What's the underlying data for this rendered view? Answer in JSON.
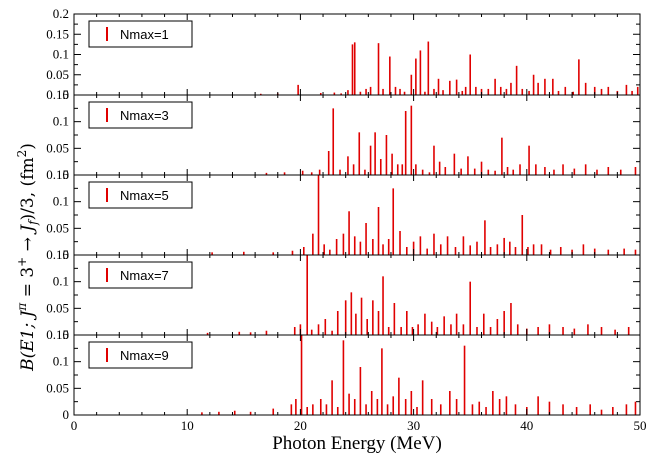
{
  "chart_data": {
    "type": "bar",
    "panel_layout": "stacked-vertical",
    "shared_x_axis": true,
    "xlabel": "Photon Energy (MeV)",
    "ylabel": "B(E1; J^π = 3^+ → J_f)/3,  (fm^2)",
    "ylabel_parts": {
      "prefix": "B(E1; J",
      "pi_sup": "π",
      "eq3": " = 3",
      "plus_sup": "+",
      "arrow": " → J",
      "f_sub": "f",
      "suffix": ")/3,  (fm",
      "sq_sup": "2",
      "close": ")"
    },
    "xlim": [
      0,
      50
    ],
    "x_ticks": [
      0,
      10,
      20,
      30,
      40,
      50
    ],
    "x_tick_labels": [
      "0",
      "10",
      "20",
      "30",
      "40",
      "50"
    ],
    "bar_color": "#e00000",
    "grid": false,
    "legend_placement": "top-left",
    "panels": [
      {
        "legend": "Nmax=1",
        "ylim": [
          0,
          0.2
        ],
        "y_ticks": [
          0,
          0.05,
          0.1,
          0.15,
          0.2
        ],
        "y_tick_labels": [
          "0",
          "0.05",
          "0.1",
          "0.15",
          "0.2"
        ],
        "bars": [
          [
            16.5,
            0.003
          ],
          [
            18.0,
            0.004
          ],
          [
            19.8,
            0.025
          ],
          [
            21.8,
            0.005
          ],
          [
            23.0,
            0.006
          ],
          [
            23.6,
            0.004
          ],
          [
            24.2,
            0.012
          ],
          [
            24.6,
            0.125
          ],
          [
            24.8,
            0.13
          ],
          [
            25.3,
            0.008
          ],
          [
            25.8,
            0.015
          ],
          [
            26.2,
            0.02
          ],
          [
            26.9,
            0.128
          ],
          [
            27.3,
            0.015
          ],
          [
            27.9,
            0.095
          ],
          [
            28.4,
            0.02
          ],
          [
            28.8,
            0.015
          ],
          [
            29.2,
            0.008
          ],
          [
            29.8,
            0.05
          ],
          [
            30.2,
            0.09
          ],
          [
            30.6,
            0.11
          ],
          [
            31.0,
            0.008
          ],
          [
            31.3,
            0.132
          ],
          [
            31.8,
            0.015
          ],
          [
            32.2,
            0.04
          ],
          [
            32.6,
            0.012
          ],
          [
            33.2,
            0.035
          ],
          [
            33.8,
            0.038
          ],
          [
            34.3,
            0.01
          ],
          [
            34.6,
            0.02
          ],
          [
            35.0,
            0.1
          ],
          [
            35.5,
            0.02
          ],
          [
            36.0,
            0.015
          ],
          [
            36.6,
            0.015
          ],
          [
            37.2,
            0.04
          ],
          [
            37.7,
            0.02
          ],
          [
            38.2,
            0.015
          ],
          [
            38.6,
            0.03
          ],
          [
            39.1,
            0.072
          ],
          [
            39.6,
            0.015
          ],
          [
            40.2,
            0.01
          ],
          [
            40.6,
            0.05
          ],
          [
            41.0,
            0.03
          ],
          [
            41.6,
            0.04
          ],
          [
            42.3,
            0.04
          ],
          [
            42.8,
            0.01
          ],
          [
            43.4,
            0.02
          ],
          [
            44.1,
            0.008
          ],
          [
            44.6,
            0.088
          ],
          [
            45.2,
            0.03
          ],
          [
            46.0,
            0.02
          ],
          [
            46.6,
            0.015
          ],
          [
            47.2,
            0.02
          ],
          [
            48.0,
            0.01
          ],
          [
            48.8,
            0.025
          ],
          [
            49.3,
            0.01
          ],
          [
            49.8,
            0.02
          ]
        ]
      },
      {
        "legend": "Nmax=3",
        "ylim": [
          0,
          0.15
        ],
        "y_ticks": [
          0,
          0.05,
          0.1,
          0.15
        ],
        "y_tick_labels": [
          "0",
          "0.05",
          "0.1",
          "0.15"
        ],
        "bars": [
          [
            17.0,
            0.004
          ],
          [
            18.6,
            0.005
          ],
          [
            20.2,
            0.008
          ],
          [
            21.0,
            0.005
          ],
          [
            21.7,
            0.01
          ],
          [
            22.5,
            0.045
          ],
          [
            22.9,
            0.125
          ],
          [
            23.5,
            0.01
          ],
          [
            24.2,
            0.035
          ],
          [
            24.7,
            0.02
          ],
          [
            25.2,
            0.08
          ],
          [
            25.7,
            0.01
          ],
          [
            26.2,
            0.055
          ],
          [
            26.6,
            0.08
          ],
          [
            27.1,
            0.03
          ],
          [
            27.6,
            0.075
          ],
          [
            28.1,
            0.04
          ],
          [
            28.6,
            0.02
          ],
          [
            29.0,
            0.02
          ],
          [
            29.3,
            0.12
          ],
          [
            29.8,
            0.13
          ],
          [
            30.2,
            0.02
          ],
          [
            30.8,
            0.01
          ],
          [
            31.4,
            0.005
          ],
          [
            31.8,
            0.055
          ],
          [
            32.3,
            0.025
          ],
          [
            32.8,
            0.015
          ],
          [
            33.6,
            0.04
          ],
          [
            34.2,
            0.012
          ],
          [
            34.8,
            0.035
          ],
          [
            35.4,
            0.012
          ],
          [
            36.0,
            0.025
          ],
          [
            36.6,
            0.01
          ],
          [
            37.2,
            0.008
          ],
          [
            37.8,
            0.07
          ],
          [
            38.3,
            0.015
          ],
          [
            38.8,
            0.01
          ],
          [
            39.4,
            0.02
          ],
          [
            40.2,
            0.055
          ],
          [
            40.8,
            0.02
          ],
          [
            41.6,
            0.015
          ],
          [
            42.4,
            0.01
          ],
          [
            43.2,
            0.02
          ],
          [
            44.2,
            0.012
          ],
          [
            45.2,
            0.02
          ],
          [
            46.2,
            0.01
          ],
          [
            47.2,
            0.015
          ],
          [
            48.3,
            0.01
          ],
          [
            49.6,
            0.015
          ]
        ]
      },
      {
        "legend": "Nmax=5",
        "ylim": [
          0,
          0.15
        ],
        "y_ticks": [
          0,
          0.05,
          0.1,
          0.15
        ],
        "y_tick_labels": [
          "0",
          "0.05",
          "0.1",
          "0.15"
        ],
        "bars": [
          [
            12.2,
            0.005
          ],
          [
            15.0,
            0.006
          ],
          [
            17.6,
            0.005
          ],
          [
            19.3,
            0.008
          ],
          [
            20.3,
            0.015
          ],
          [
            21.1,
            0.04
          ],
          [
            21.6,
            0.16
          ],
          [
            22.1,
            0.02
          ],
          [
            22.6,
            0.01
          ],
          [
            23.2,
            0.03
          ],
          [
            23.8,
            0.04
          ],
          [
            24.3,
            0.082
          ],
          [
            24.8,
            0.035
          ],
          [
            25.3,
            0.025
          ],
          [
            25.8,
            0.06
          ],
          [
            26.4,
            0.03
          ],
          [
            26.9,
            0.09
          ],
          [
            27.3,
            0.02
          ],
          [
            27.8,
            0.03
          ],
          [
            28.2,
            0.125
          ],
          [
            28.8,
            0.045
          ],
          [
            29.4,
            0.015
          ],
          [
            30.0,
            0.025
          ],
          [
            30.6,
            0.035
          ],
          [
            31.2,
            0.012
          ],
          [
            31.8,
            0.04
          ],
          [
            32.4,
            0.02
          ],
          [
            33.0,
            0.035
          ],
          [
            33.7,
            0.015
          ],
          [
            34.4,
            0.035
          ],
          [
            35.0,
            0.018
          ],
          [
            35.6,
            0.025
          ],
          [
            36.3,
            0.065
          ],
          [
            36.8,
            0.015
          ],
          [
            37.4,
            0.02
          ],
          [
            38.0,
            0.032
          ],
          [
            38.5,
            0.025
          ],
          [
            39.0,
            0.015
          ],
          [
            39.6,
            0.075
          ],
          [
            40.1,
            0.015
          ],
          [
            40.6,
            0.02
          ],
          [
            41.3,
            0.02
          ],
          [
            42.1,
            0.01
          ],
          [
            43.0,
            0.015
          ],
          [
            44.0,
            0.01
          ],
          [
            45.0,
            0.02
          ],
          [
            46.0,
            0.012
          ],
          [
            47.2,
            0.01
          ],
          [
            48.6,
            0.012
          ],
          [
            49.6,
            0.01
          ]
        ]
      },
      {
        "legend": "Nmax=7",
        "ylim": [
          0,
          0.15
        ],
        "y_ticks": [
          0,
          0.05,
          0.1,
          0.15
        ],
        "y_tick_labels": [
          "0",
          "0.05",
          "0.1",
          "0.15"
        ],
        "bars": [
          [
            11.8,
            0.004
          ],
          [
            14.6,
            0.006
          ],
          [
            15.6,
            0.005
          ],
          [
            17.0,
            0.008
          ],
          [
            19.5,
            0.015
          ],
          [
            20.0,
            0.02
          ],
          [
            20.6,
            0.18
          ],
          [
            21.0,
            0.01
          ],
          [
            21.6,
            0.02
          ],
          [
            22.2,
            0.03
          ],
          [
            22.8,
            0.008
          ],
          [
            23.3,
            0.045
          ],
          [
            24.0,
            0.065
          ],
          [
            24.5,
            0.08
          ],
          [
            24.9,
            0.04
          ],
          [
            25.4,
            0.07
          ],
          [
            25.9,
            0.03
          ],
          [
            26.4,
            0.065
          ],
          [
            26.9,
            0.045
          ],
          [
            27.3,
            0.11
          ],
          [
            27.8,
            0.015
          ],
          [
            28.3,
            0.06
          ],
          [
            28.9,
            0.015
          ],
          [
            29.4,
            0.045
          ],
          [
            29.9,
            0.015
          ],
          [
            30.4,
            0.02
          ],
          [
            31.0,
            0.04
          ],
          [
            31.6,
            0.025
          ],
          [
            32.1,
            0.015
          ],
          [
            32.7,
            0.035
          ],
          [
            33.3,
            0.02
          ],
          [
            33.8,
            0.04
          ],
          [
            34.4,
            0.02
          ],
          [
            35.0,
            0.1
          ],
          [
            35.6,
            0.015
          ],
          [
            36.2,
            0.04
          ],
          [
            36.8,
            0.015
          ],
          [
            37.4,
            0.03
          ],
          [
            38.0,
            0.045
          ],
          [
            38.6,
            0.06
          ],
          [
            39.2,
            0.02
          ],
          [
            40.0,
            0.012
          ],
          [
            41.0,
            0.015
          ],
          [
            42.0,
            0.02
          ],
          [
            43.2,
            0.015
          ],
          [
            44.2,
            0.012
          ],
          [
            45.4,
            0.02
          ],
          [
            46.6,
            0.015
          ],
          [
            47.8,
            0.01
          ],
          [
            49.0,
            0.015
          ]
        ]
      },
      {
        "legend": "Nmax=9",
        "ylim": [
          0,
          0.15
        ],
        "y_ticks": [
          0,
          0.05,
          0.1,
          0.15
        ],
        "y_tick_labels": [
          "0",
          "0.05",
          "0.1",
          "0.15"
        ],
        "bars": [
          [
            11.3,
            0.005
          ],
          [
            12.8,
            0.006
          ],
          [
            14.2,
            0.008
          ],
          [
            15.6,
            0.006
          ],
          [
            17.6,
            0.012
          ],
          [
            19.2,
            0.02
          ],
          [
            19.6,
            0.03
          ],
          [
            20.1,
            0.18
          ],
          [
            20.6,
            0.015
          ],
          [
            21.1,
            0.02
          ],
          [
            21.8,
            0.03
          ],
          [
            22.3,
            0.02
          ],
          [
            22.8,
            0.065
          ],
          [
            23.3,
            0.015
          ],
          [
            23.8,
            0.14
          ],
          [
            24.3,
            0.04
          ],
          [
            24.8,
            0.03
          ],
          [
            25.3,
            0.09
          ],
          [
            25.8,
            0.02
          ],
          [
            26.3,
            0.045
          ],
          [
            26.8,
            0.03
          ],
          [
            27.2,
            0.125
          ],
          [
            27.7,
            0.02
          ],
          [
            28.2,
            0.035
          ],
          [
            28.7,
            0.07
          ],
          [
            29.3,
            0.03
          ],
          [
            29.8,
            0.045
          ],
          [
            30.3,
            0.015
          ],
          [
            30.8,
            0.065
          ],
          [
            31.6,
            0.03
          ],
          [
            32.4,
            0.02
          ],
          [
            33.2,
            0.045
          ],
          [
            33.8,
            0.03
          ],
          [
            34.5,
            0.13
          ],
          [
            35.2,
            0.02
          ],
          [
            35.8,
            0.025
          ],
          [
            36.4,
            0.015
          ],
          [
            37.0,
            0.045
          ],
          [
            37.6,
            0.03
          ],
          [
            38.2,
            0.035
          ],
          [
            39.0,
            0.02
          ],
          [
            40.0,
            0.015
          ],
          [
            41.0,
            0.035
          ],
          [
            42.0,
            0.025
          ],
          [
            43.2,
            0.02
          ],
          [
            44.4,
            0.015
          ],
          [
            45.6,
            0.02
          ],
          [
            46.6,
            0.01
          ],
          [
            47.6,
            0.015
          ],
          [
            48.8,
            0.02
          ],
          [
            49.6,
            0.025
          ]
        ]
      }
    ]
  }
}
